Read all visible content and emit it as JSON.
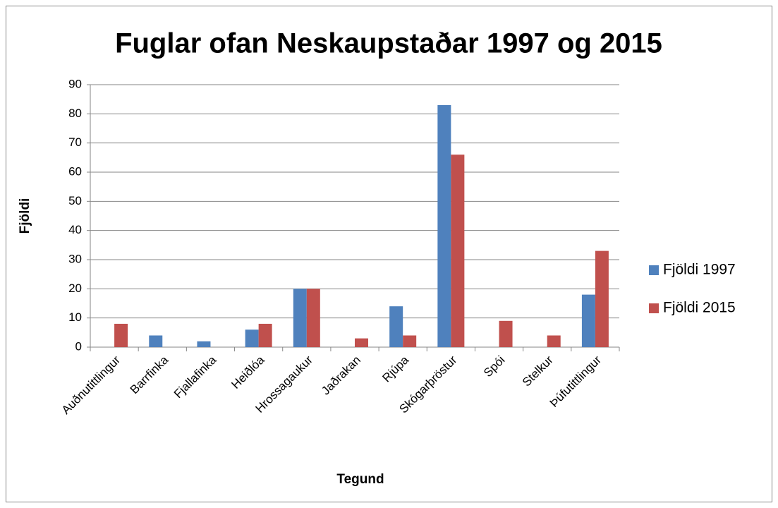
{
  "chart_data": {
    "type": "bar",
    "title": "Fuglar ofan Neskaupstaðar 1997 og 2015",
    "x_label": "Tegund",
    "y_label": "Fjöldi",
    "categories": [
      "Auðnutittlingur",
      "Barrfinka",
      "Fjallafinka",
      "Heiðlóa",
      "Hrossagaukur",
      "Jaðrakan",
      "Rjúpa",
      "Skógarþröstur",
      "Spói",
      "Stelkur",
      "Þúfutittlingur"
    ],
    "series": [
      {
        "name": "Fjöldi 1997",
        "color": "#4f81bd",
        "values": [
          0,
          4,
          2,
          6,
          20,
          0,
          14,
          83,
          0,
          0,
          18
        ]
      },
      {
        "name": "Fjöldi 2015",
        "color": "#c0504d",
        "values": [
          8,
          0,
          0,
          8,
          20,
          3,
          4,
          66,
          9,
          4,
          33
        ]
      }
    ],
    "ylim": [
      0,
      90
    ],
    "yticks": [
      0,
      10,
      20,
      30,
      40,
      50,
      60,
      70,
      80,
      90
    ],
    "grid": true,
    "legend": "right"
  }
}
